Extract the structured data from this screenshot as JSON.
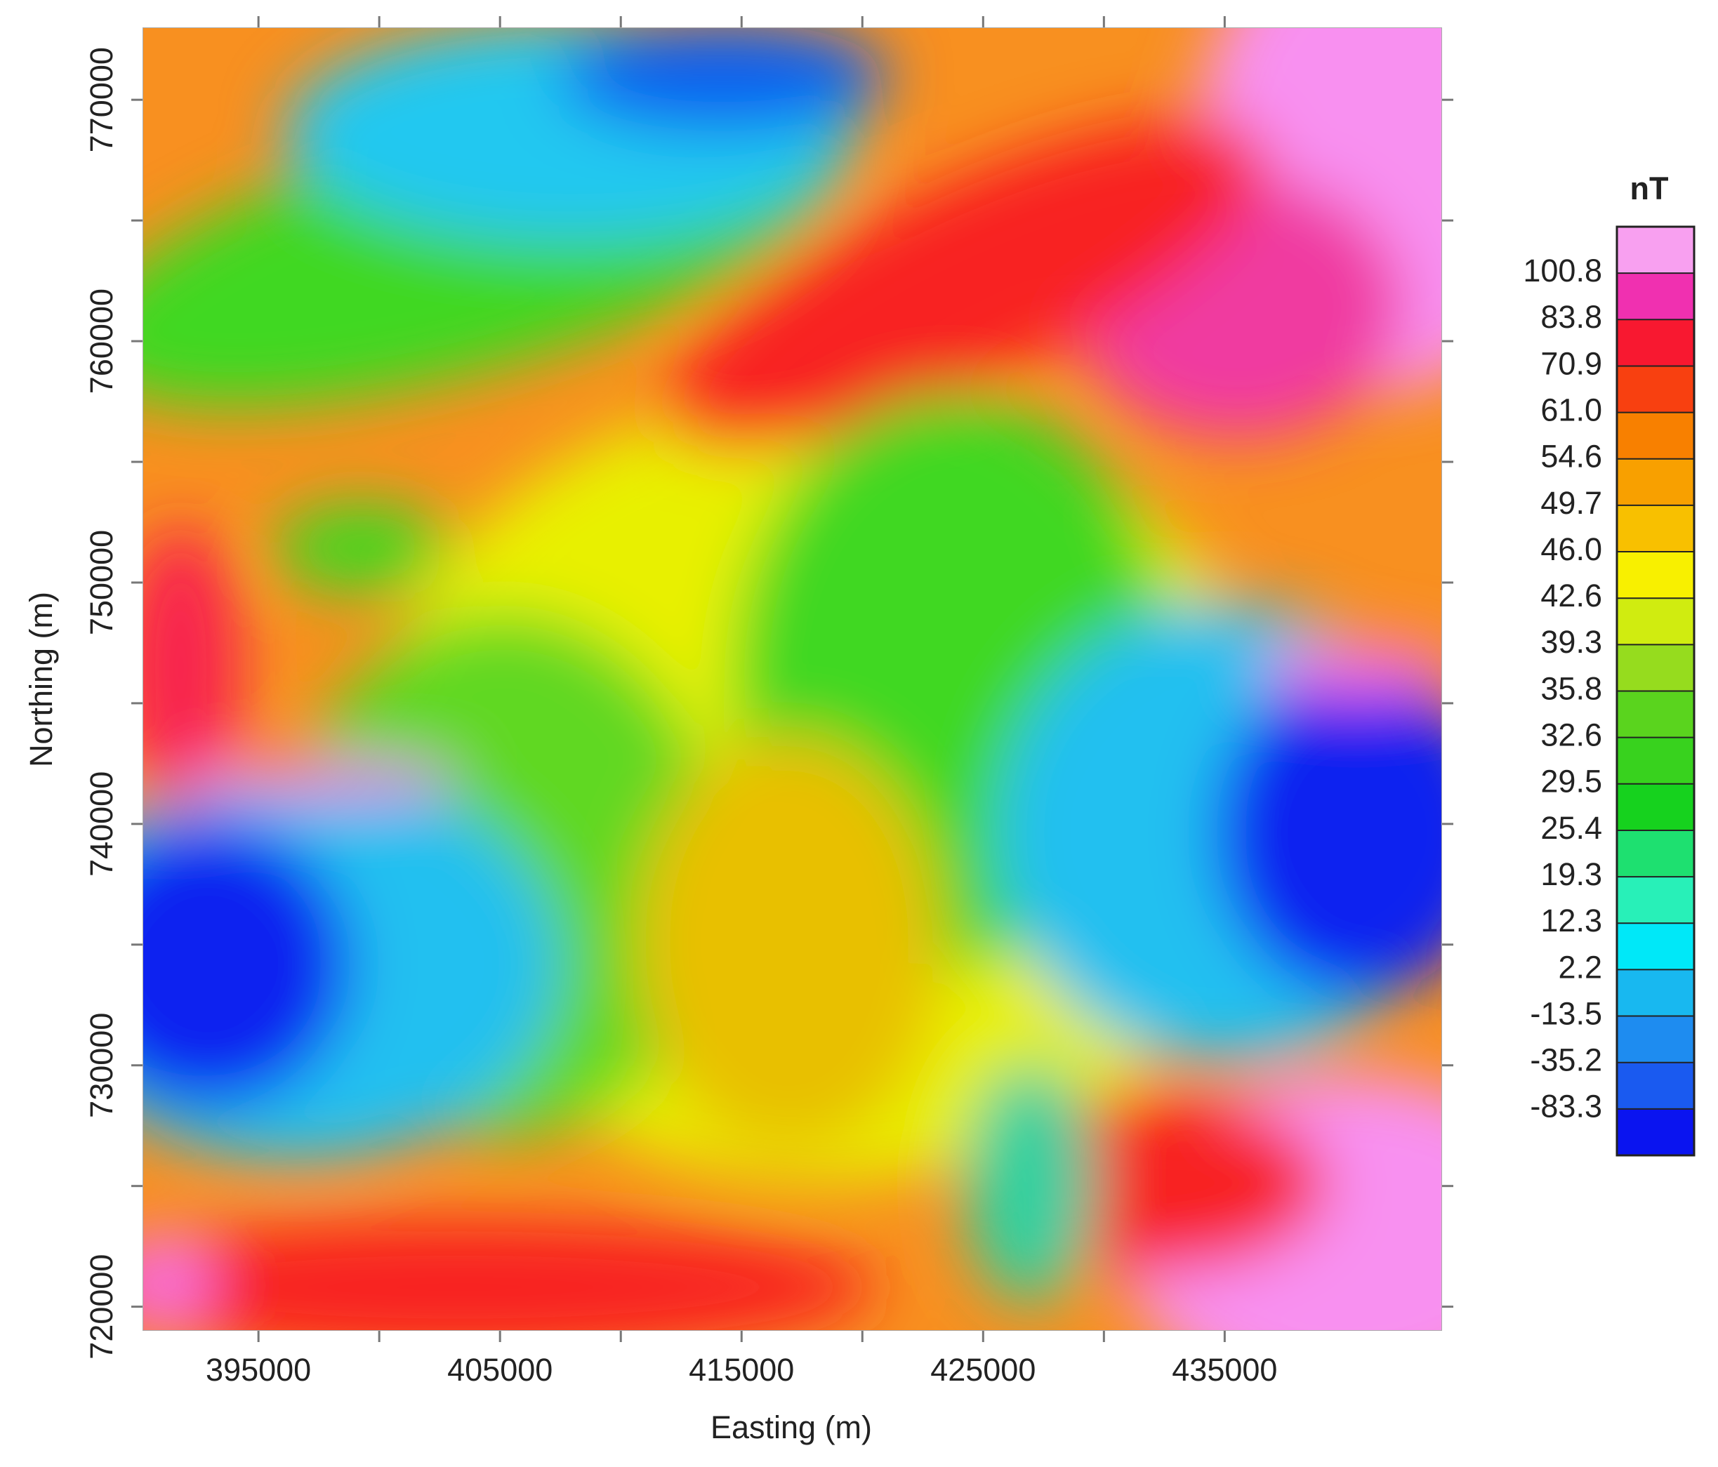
{
  "chart_data": {
    "type": "heatmap",
    "x_label": "Easting (m)",
    "y_label": "Northing (m)",
    "xlim": [
      390200,
      444000
    ],
    "ylim": [
      719000,
      773000
    ],
    "xticks": [
      395000,
      405000,
      415000,
      425000,
      435000
    ],
    "yticks": [
      720000,
      730000,
      740000,
      750000,
      760000,
      770000
    ],
    "colorbar": {
      "title": "nT",
      "ticks": [
        -83.3,
        -35.2,
        -13.5,
        2.2,
        12.3,
        19.3,
        25.4,
        29.5,
        32.6,
        35.8,
        39.3,
        42.6,
        {
          "value": 46,
          "label": "46.0"
        },
        49.7,
        54.6,
        {
          "value": 61,
          "label": "61.0"
        },
        70.9,
        83.8,
        100.8
      ],
      "colors": [
        "#0a14f0",
        "#1a5af0",
        "#1e8cf0",
        "#18b8f0",
        "#00e8f8",
        "#28f0b8",
        "#1ee070",
        "#16d21e",
        "#38d21e",
        "#5ad41e",
        "#96dc1e",
        "#d0ec10",
        "#f8f000",
        "#f8c000",
        "#f8a000",
        "#f88000",
        "#f84010",
        "#f81830",
        "#f030b0",
        "#f8a0f0"
      ]
    }
  }
}
